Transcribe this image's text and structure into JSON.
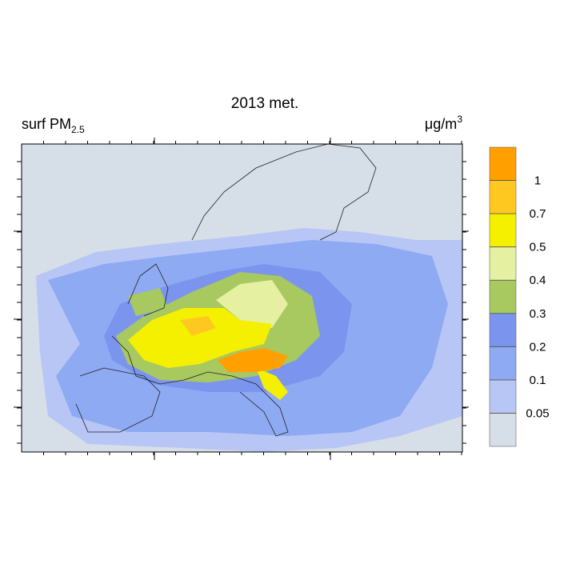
{
  "header": {
    "title": "2013 met.",
    "variable": {
      "text": "surf PM",
      "sub": "2.5"
    },
    "units": {
      "text": "μg/m",
      "sup": "3"
    }
  },
  "colorbar": {
    "levels": [
      0.05,
      0.1,
      0.2,
      0.3,
      0.4,
      0.5,
      0.7,
      1
    ],
    "colors": [
      "#d6dee8",
      "#b7c6f5",
      "#8eaaf2",
      "#7b95ee",
      "#a8c860",
      "#e5f0a0",
      "#f5f000",
      "#ffc820",
      "#ffa000"
    ]
  }
}
